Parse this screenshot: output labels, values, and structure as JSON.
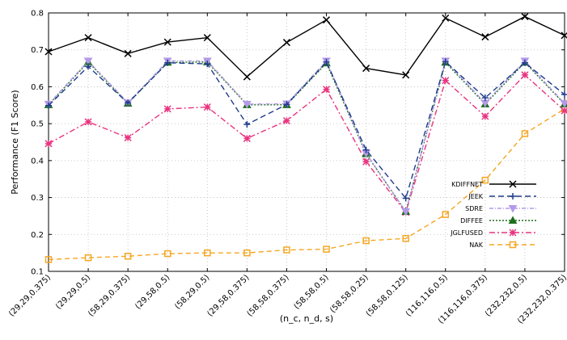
{
  "chart_data": {
    "type": "line",
    "xlabel": "(n_c, n_d, s)",
    "ylabel": "Performance (F1 Score)",
    "ylim": [
      0.1,
      0.8
    ],
    "yticks": [
      "0.1",
      "0.2",
      "0.3",
      "0.4",
      "0.5",
      "0.6",
      "0.7",
      "0.8"
    ],
    "grid": true,
    "legend_position": "right",
    "categories": [
      "(29,29,0.375)",
      "(29,29,0.5)",
      "(58,29,0.375)",
      "(29,58,0.5)",
      "(58,29,0.5)",
      "(29,58,0.375)",
      "(58,58,0.375)",
      "(58,58,0.5)",
      "(58,58,0.25)",
      "(58,58,0.125)",
      "(116,116,0.5)",
      "(116,116,0.375)",
      "(232,232,0.5)",
      "(232,232,0.375)"
    ],
    "series": [
      {
        "name": "KDIFFNET",
        "color": "#000000",
        "dash": "",
        "marker": "x",
        "values": [
          0.695,
          0.733,
          0.69,
          0.721,
          0.733,
          0.627,
          0.72,
          0.781,
          0.65,
          0.632,
          0.786,
          0.735,
          0.79,
          0.739
        ]
      },
      {
        "name": "JEEK",
        "color": "#1f3b8c",
        "dash": "7,4",
        "marker": "plus",
        "values": [
          0.549,
          0.655,
          0.556,
          0.665,
          0.662,
          0.498,
          0.552,
          0.667,
          0.429,
          0.298,
          0.668,
          0.57,
          0.665,
          0.579
        ]
      },
      {
        "name": "SDRE",
        "color": "#b39ae8",
        "dash": "5,2,1,2",
        "marker": "triangle-down",
        "values": [
          0.553,
          0.67,
          0.557,
          0.67,
          0.67,
          0.553,
          0.554,
          0.67,
          0.42,
          0.262,
          0.67,
          0.556,
          0.67,
          0.555
        ]
      },
      {
        "name": "DIFFEE",
        "color": "#1d6e1d",
        "dash": "2,2",
        "marker": "triangle-up",
        "values": [
          0.551,
          0.667,
          0.555,
          0.666,
          0.667,
          0.551,
          0.551,
          0.664,
          0.418,
          0.262,
          0.666,
          0.553,
          0.666,
          0.553
        ]
      },
      {
        "name": "JGLFUSED",
        "color": "#e8347f",
        "dash": "7,3,2,3",
        "marker": "asterisk",
        "values": [
          0.446,
          0.505,
          0.462,
          0.54,
          0.545,
          0.46,
          0.508,
          0.593,
          0.397,
          0.26,
          0.617,
          0.52,
          0.632,
          0.535
        ]
      },
      {
        "name": "NAK",
        "color": "#f5a623",
        "dash": "6,4",
        "marker": "square",
        "values": [
          0.132,
          0.137,
          0.141,
          0.148,
          0.15,
          0.15,
          0.158,
          0.16,
          0.183,
          0.189,
          0.254,
          0.347,
          0.473,
          0.54
        ]
      }
    ]
  }
}
